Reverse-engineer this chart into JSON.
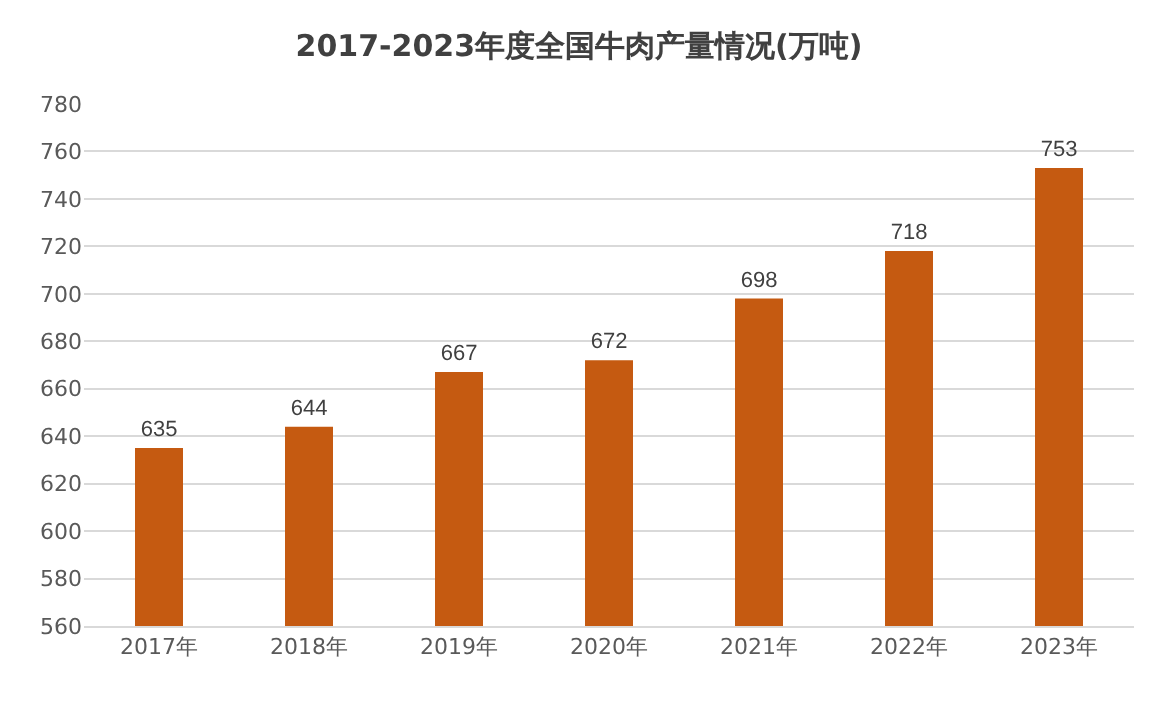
{
  "chart_data": {
    "type": "bar",
    "title": "2017-2023年度全国牛肉产量情况(万吨)",
    "categories": [
      "2017年",
      "2018年",
      "2019年",
      "2020年",
      "2021年",
      "2022年",
      "2023年"
    ],
    "values": [
      635,
      644,
      667,
      672,
      698,
      718,
      753
    ],
    "color": "#c55a11",
    "ylim": [
      560,
      780
    ],
    "yticks": [
      560,
      580,
      600,
      620,
      640,
      660,
      680,
      700,
      720,
      740,
      760,
      780
    ],
    "grid": "y",
    "data_labels": true
  }
}
